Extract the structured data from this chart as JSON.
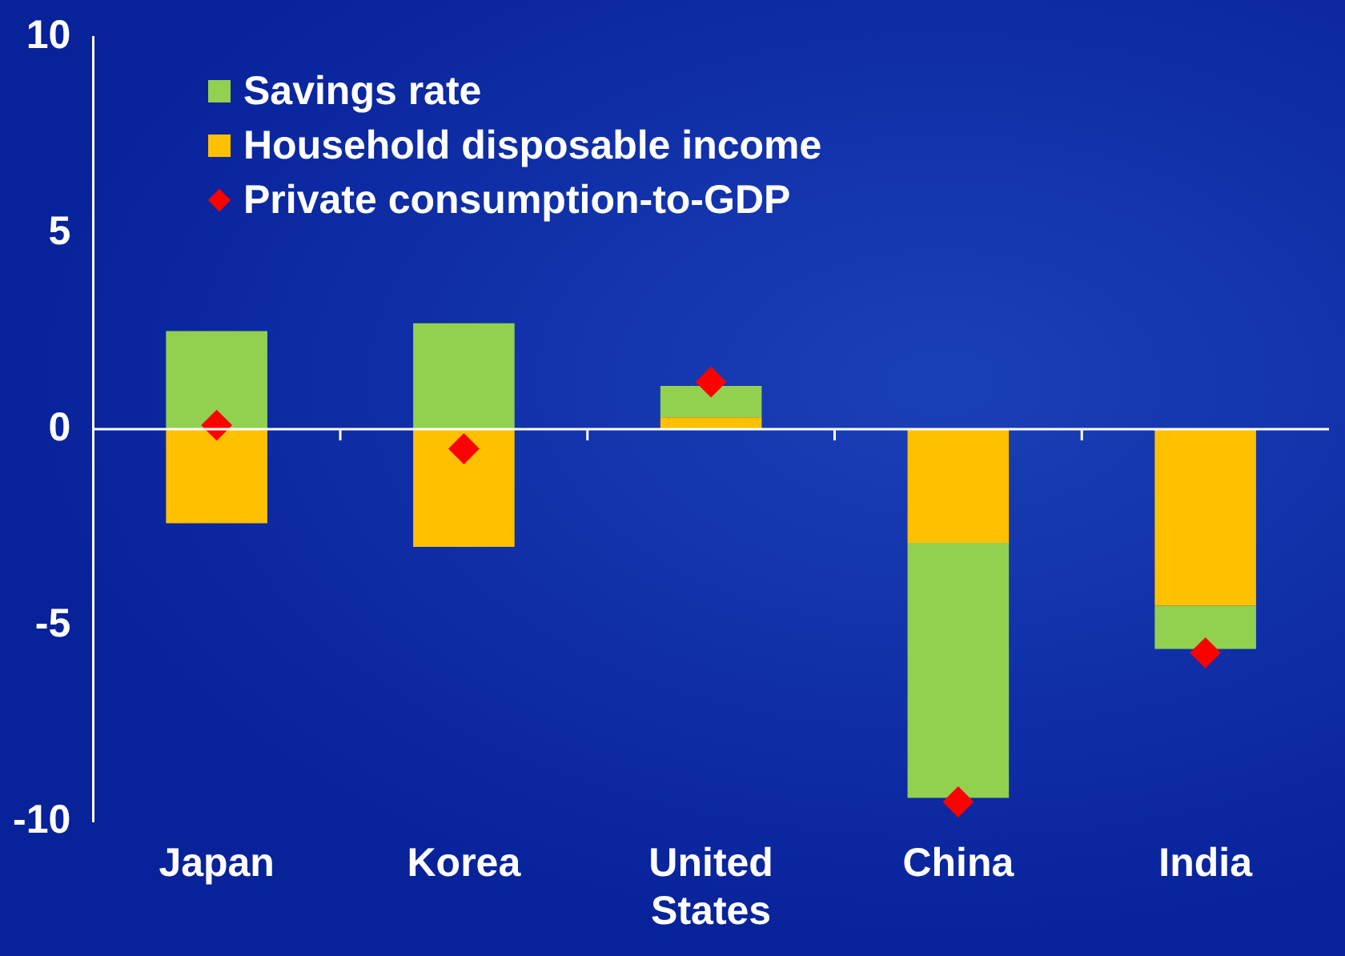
{
  "chart_data": {
    "type": "bar",
    "stacked": true,
    "categories": [
      "Japan",
      "Korea",
      "United States",
      "China",
      "India"
    ],
    "series": [
      {
        "name": "Household disposable income",
        "color": "#ffc000",
        "values": [
          -2.4,
          -3.0,
          0.3,
          -2.9,
          -4.5
        ]
      },
      {
        "name": "Savings rate",
        "color": "#92d050",
        "values": [
          2.5,
          2.7,
          0.8,
          -6.5,
          -1.1
        ]
      },
      {
        "name": "Private consumption-to-GDP",
        "type": "scatter",
        "marker": "diamond",
        "color": "#ff0000",
        "values": [
          0.1,
          -0.5,
          1.2,
          -9.5,
          -5.7
        ]
      }
    ],
    "ylim": [
      -10,
      10
    ],
    "yticks": [
      -10,
      -5,
      0,
      5,
      10
    ],
    "grid": false,
    "legend": "top left",
    "ref_lines": [
      {
        "axis": "y",
        "value": 0,
        "color": "#ffffff"
      }
    ]
  }
}
